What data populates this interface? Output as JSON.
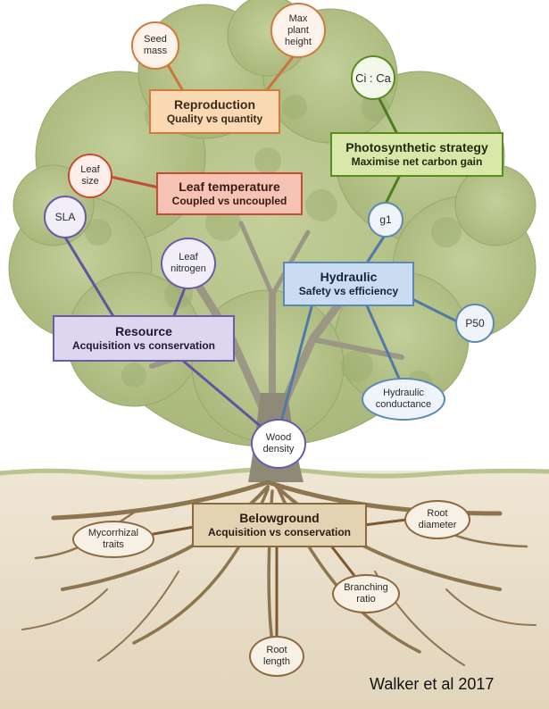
{
  "colors": {
    "orange": "#d9792f",
    "red": "#c94a33",
    "green": "#5e8a23",
    "blue": "#5b88b5",
    "purple": "#6b5aa8",
    "brown": "#8a6a3e"
  },
  "nodes": {
    "seed_mass": [
      "Seed",
      "mass"
    ],
    "max_height": [
      "Max",
      "plant",
      "height"
    ],
    "ci_ca": "Ci : Ca",
    "leaf_size": [
      "Leaf",
      "size"
    ],
    "sla": "SLA",
    "g1": "g1",
    "leaf_nitrogen": [
      "Leaf",
      "nitrogen"
    ],
    "p50": "P50",
    "hydraulic_conductance": [
      "Hydraulic",
      "conductance"
    ],
    "wood_density": [
      "Wood",
      "density"
    ],
    "mycorrhizal_traits": [
      "Mycorrhizal",
      "traits"
    ],
    "root_diameter": [
      "Root",
      "diameter"
    ],
    "branching_ratio": [
      "Branching",
      "ratio"
    ],
    "root_length": [
      "Root",
      "length"
    ]
  },
  "boxes": {
    "reproduction": {
      "title": "Reproduction",
      "subtitle": "Quality vs quantity"
    },
    "photosynthetic": {
      "title": "Photosynthetic strategy",
      "subtitle": "Maximise net carbon gain"
    },
    "leaf_temperature": {
      "title": "Leaf temperature",
      "subtitle": "Coupled vs uncoupled"
    },
    "hydraulic": {
      "title": "Hydraulic",
      "subtitle": "Safety vs efficiency"
    },
    "resource": {
      "title": "Resource",
      "subtitle": "Acquisition vs conservation"
    },
    "belowground": {
      "title": "Belowground",
      "subtitle": "Acquisition vs conservation"
    }
  },
  "credit": "Walker et al 2017"
}
